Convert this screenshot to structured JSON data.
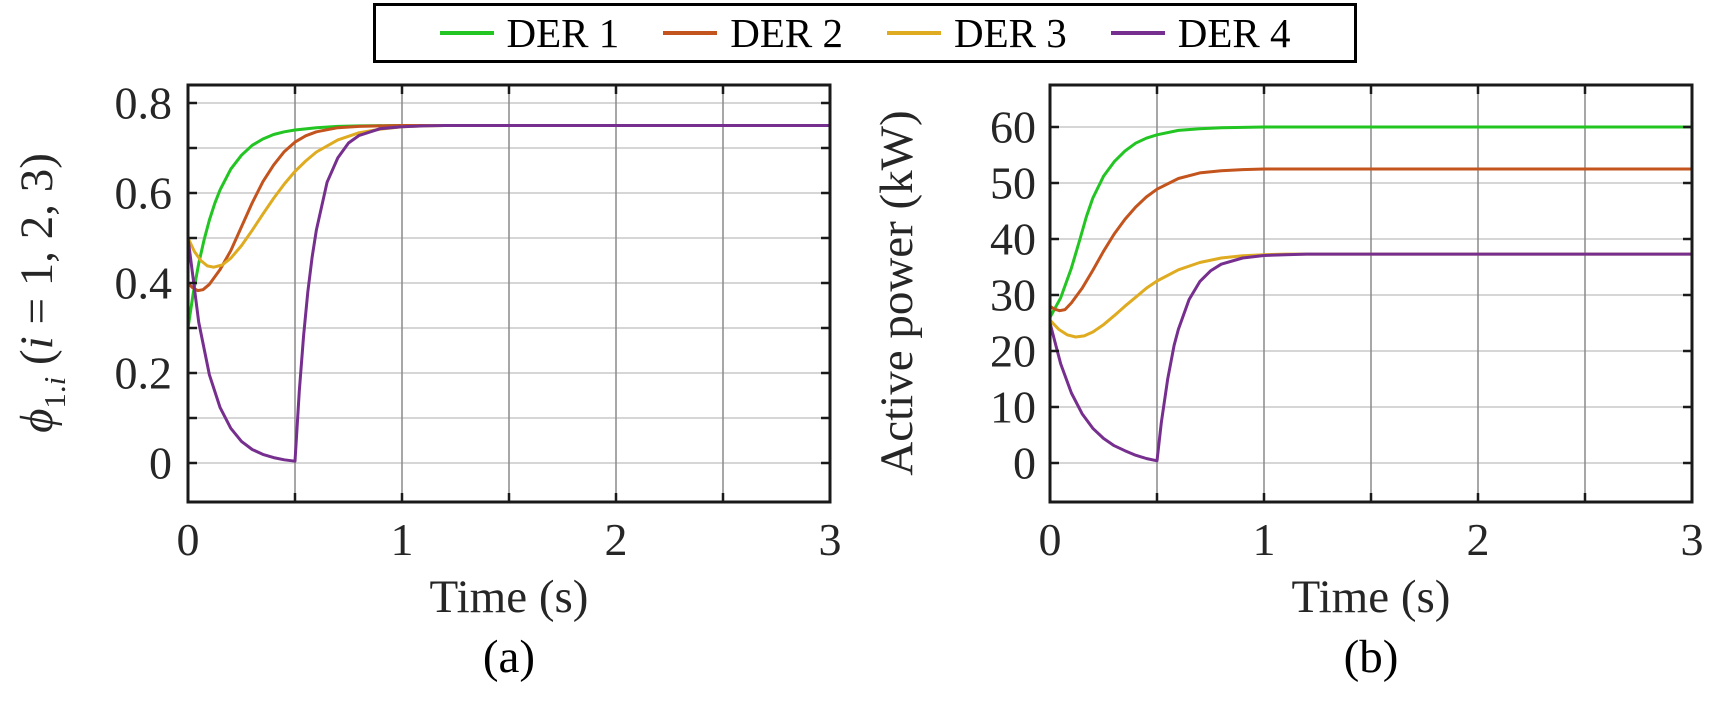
{
  "figure": {
    "background": "#ffffff",
    "text_color": "#262626",
    "spine_color": "#1a1a1a",
    "grid_color_vertical": "#8a8a8a",
    "grid_color_horizontal": "#c9c9c9",
    "legend": {
      "items": [
        {
          "label": "DER 1",
          "color": "#22c522"
        },
        {
          "label": "DER 2",
          "color": "#c3541d"
        },
        {
          "label": "DER 3",
          "color": "#dfab20"
        },
        {
          "label": "DER 4",
          "color": "#762f8e"
        }
      ]
    }
  },
  "chart_data": [
    {
      "type": "line",
      "caption": "(a)",
      "xlabel": "Time (s)",
      "ylabel_parts": [
        {
          "text": "ϕ",
          "italic": true
        },
        {
          "text": "1.",
          "sub": true
        },
        {
          "text": "i",
          "sub": true,
          "italic": true
        },
        {
          "text": " (",
          "italic": false
        },
        {
          "text": "i",
          "italic": true
        },
        {
          "text": " = 1, 2, 3)",
          "italic": false
        }
      ],
      "xlim": [
        0,
        3
      ],
      "ylim": [
        -0.0867,
        0.84
      ],
      "xticks": [
        0,
        0.5,
        1,
        1.5,
        2,
        2.5,
        3
      ],
      "xgrid": [
        0.5,
        1,
        1.5,
        2,
        2.5
      ],
      "xticklabels": [
        {
          "v": 0,
          "t": "0"
        },
        {
          "v": 1,
          "t": "1"
        },
        {
          "v": 2,
          "t": "2"
        },
        {
          "v": 3,
          "t": "3"
        }
      ],
      "ygrid": [
        0,
        0.1,
        0.2,
        0.3,
        0.4,
        0.5,
        0.6,
        0.7,
        0.8
      ],
      "yticks": [
        0,
        0.1,
        0.2,
        0.3,
        0.4,
        0.5,
        0.6,
        0.7,
        0.8
      ],
      "yticklabels": [
        {
          "v": 0,
          "t": "0"
        },
        {
          "v": 0.2,
          "t": "0.2"
        },
        {
          "v": 0.4,
          "t": "0.4"
        },
        {
          "v": 0.6,
          "t": "0.6"
        },
        {
          "v": 0.8,
          "t": "0.8"
        }
      ],
      "legend_position": "top-center-shared",
      "grid": true,
      "series": [
        {
          "name": "DER 1",
          "color": "#22c522",
          "x": [
            0,
            0.025,
            0.05,
            0.075,
            0.1,
            0.125,
            0.15,
            0.2,
            0.25,
            0.3,
            0.35,
            0.4,
            0.45,
            0.5,
            0.6,
            0.7,
            0.8,
            1,
            1.2,
            1.5,
            2,
            2.5,
            3
          ],
          "y": [
            0.3,
            0.378,
            0.443,
            0.496,
            0.54,
            0.577,
            0.607,
            0.653,
            0.684,
            0.706,
            0.72,
            0.73,
            0.736,
            0.74,
            0.745,
            0.748,
            0.749,
            0.75,
            0.75,
            0.75,
            0.75,
            0.75,
            0.75
          ]
        },
        {
          "name": "DER 2",
          "color": "#c3541d",
          "x": [
            0,
            0.02,
            0.045,
            0.07,
            0.1,
            0.15,
            0.2,
            0.25,
            0.3,
            0.35,
            0.4,
            0.45,
            0.5,
            0.55,
            0.6,
            0.7,
            0.8,
            0.9,
            1,
            1.2,
            1.5,
            2,
            2.5,
            3
          ],
          "y": [
            0.4,
            0.39,
            0.383,
            0.385,
            0.397,
            0.43,
            0.472,
            0.525,
            0.578,
            0.625,
            0.662,
            0.692,
            0.713,
            0.727,
            0.736,
            0.745,
            0.748,
            0.749,
            0.75,
            0.75,
            0.75,
            0.75,
            0.75,
            0.75
          ]
        },
        {
          "name": "DER 3",
          "color": "#dfab20",
          "x": [
            0,
            0.03,
            0.06,
            0.09,
            0.12,
            0.16,
            0.2,
            0.25,
            0.3,
            0.35,
            0.4,
            0.45,
            0.5,
            0.55,
            0.6,
            0.7,
            0.8,
            0.9,
            1,
            1.1,
            1.2,
            1.5,
            2,
            2.5,
            3
          ],
          "y": [
            0.5,
            0.47,
            0.45,
            0.438,
            0.435,
            0.44,
            0.455,
            0.483,
            0.517,
            0.553,
            0.588,
            0.62,
            0.648,
            0.671,
            0.691,
            0.718,
            0.734,
            0.742,
            0.747,
            0.749,
            0.75,
            0.75,
            0.75,
            0.75,
            0.75
          ]
        },
        {
          "name": "DER 4",
          "color": "#762f8e",
          "x": [
            0,
            0.05,
            0.1,
            0.15,
            0.2,
            0.25,
            0.3,
            0.35,
            0.4,
            0.45,
            0.5,
            0.52,
            0.54,
            0.56,
            0.58,
            0.6,
            0.65,
            0.7,
            0.75,
            0.8,
            0.9,
            1,
            1.1,
            1.2,
            1.5,
            2,
            2.5,
            3
          ],
          "y": [
            0.5,
            0.313,
            0.196,
            0.123,
            0.077,
            0.048,
            0.03,
            0.019,
            0.012,
            0.007,
            0.004,
            0.16,
            0.283,
            0.38,
            0.457,
            0.518,
            0.624,
            0.678,
            0.711,
            0.728,
            0.743,
            0.747,
            0.749,
            0.75,
            0.75,
            0.75,
            0.75,
            0.75
          ]
        }
      ]
    },
    {
      "type": "line",
      "caption": "(b)",
      "xlabel": "Time (s)",
      "ylabel_parts": [
        {
          "text": "Active power (kW)",
          "italic": false
        }
      ],
      "xlim": [
        0,
        3
      ],
      "ylim": [
        -6.96,
        67.5
      ],
      "xticks": [
        0,
        0.5,
        1,
        1.5,
        2,
        2.5,
        3
      ],
      "xgrid": [
        0.5,
        1,
        1.5,
        2,
        2.5
      ],
      "xticklabels": [
        {
          "v": 0,
          "t": "0"
        },
        {
          "v": 1,
          "t": "1"
        },
        {
          "v": 2,
          "t": "2"
        },
        {
          "v": 3,
          "t": "3"
        }
      ],
      "ygrid": [
        0,
        10,
        20,
        30,
        40,
        50,
        60
      ],
      "yticks": [
        0,
        10,
        20,
        30,
        40,
        50,
        60
      ],
      "yticklabels": [
        {
          "v": 0,
          "t": "0"
        },
        {
          "v": 10,
          "t": "10"
        },
        {
          "v": 20,
          "t": "20"
        },
        {
          "v": 30,
          "t": "30"
        },
        {
          "v": 40,
          "t": "40"
        },
        {
          "v": 50,
          "t": "50"
        },
        {
          "v": 60,
          "t": "60"
        }
      ],
      "legend_position": "top-center-shared",
      "grid": true,
      "series": [
        {
          "name": "DER 1",
          "color": "#22c522",
          "x": [
            0,
            0.05,
            0.1,
            0.14,
            0.17,
            0.2,
            0.25,
            0.3,
            0.35,
            0.4,
            0.45,
            0.5,
            0.6,
            0.7,
            0.8,
            1,
            1.2,
            1.5,
            2,
            2.5,
            3
          ],
          "y": [
            26,
            29.5,
            34.8,
            40.0,
            44.0,
            47.3,
            51.2,
            53.8,
            55.7,
            57.1,
            58.0,
            58.6,
            59.4,
            59.7,
            59.85,
            60,
            60,
            60,
            60,
            60,
            60
          ]
        },
        {
          "name": "DER 2",
          "color": "#c3541d",
          "x": [
            0,
            0.02,
            0.045,
            0.07,
            0.1,
            0.15,
            0.2,
            0.25,
            0.3,
            0.35,
            0.4,
            0.45,
            0.5,
            0.6,
            0.7,
            0.8,
            0.9,
            1,
            1.2,
            1.5,
            2,
            2.5,
            3
          ],
          "y": [
            28,
            27.5,
            27.2,
            27.4,
            28.6,
            31.2,
            34.4,
            37.8,
            40.9,
            43.5,
            45.7,
            47.5,
            48.9,
            50.8,
            51.8,
            52.2,
            52.4,
            52.5,
            52.5,
            52.5,
            52.5,
            52.5,
            52.5
          ]
        },
        {
          "name": "DER 3",
          "color": "#dfab20",
          "x": [
            0,
            0.04,
            0.08,
            0.12,
            0.16,
            0.2,
            0.25,
            0.3,
            0.35,
            0.4,
            0.45,
            0.5,
            0.6,
            0.7,
            0.8,
            0.9,
            1,
            1.1,
            1.2,
            1.5,
            2,
            2.5,
            3
          ],
          "y": [
            25.5,
            23.9,
            22.9,
            22.5,
            22.7,
            23.4,
            24.7,
            26.3,
            28.0,
            29.6,
            31.2,
            32.5,
            34.5,
            35.8,
            36.6,
            37.0,
            37.2,
            37.3,
            37.3,
            37.3,
            37.3,
            37.3,
            37.3
          ]
        },
        {
          "name": "DER 4",
          "color": "#762f8e",
          "x": [
            0,
            0.05,
            0.1,
            0.15,
            0.2,
            0.25,
            0.3,
            0.35,
            0.4,
            0.45,
            0.5,
            0.52,
            0.55,
            0.58,
            0.6,
            0.65,
            0.7,
            0.75,
            0.8,
            0.9,
            1,
            1.1,
            1.2,
            1.5,
            2,
            2.5,
            3
          ],
          "y": [
            25,
            17.7,
            12.5,
            8.8,
            6.2,
            4.4,
            3.1,
            2.2,
            1.4,
            0.8,
            0.4,
            7.2,
            15.0,
            21.0,
            23.9,
            29.2,
            32.4,
            34.3,
            35.5,
            36.6,
            37.05,
            37.2,
            37.3,
            37.3,
            37.3,
            37.3,
            37.3
          ]
        }
      ]
    }
  ]
}
